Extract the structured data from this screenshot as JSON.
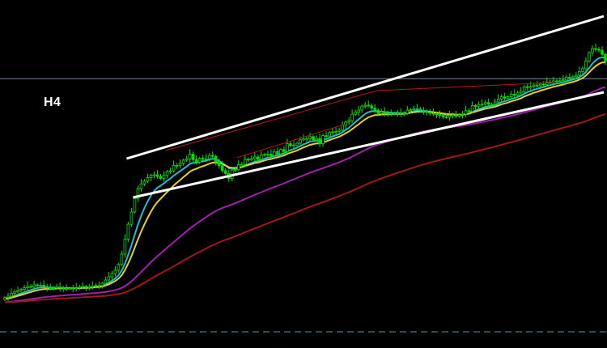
{
  "timeframe_label": "H4",
  "colors": {
    "background": "#000000",
    "candle": "#00e000",
    "ma_fast": "#22b8d8",
    "ma_medium": "#e8d020",
    "ma_slow": "#a020a8",
    "ma_long": "#a01818",
    "trendline": "#ffffff",
    "horizontal_level": "#7a8a98",
    "bottom_level": "#4a9aa8",
    "thin_red_line": "#b01818"
  },
  "chart_data": {
    "type": "candlestick",
    "title": "",
    "xlabel": "",
    "ylabel": "",
    "xlim": [
      0,
      185
    ],
    "ylim": [
      0,
      100
    ],
    "grid": false,
    "closes": [
      11.6,
      12.0,
      12.9,
      13.4,
      13.8,
      14.1,
      14.6,
      15.0,
      14.9,
      15.5,
      15.3,
      15.4,
      15.0,
      14.6,
      14.6,
      14.5,
      14.8,
      14.5,
      14.2,
      14.4,
      14.5,
      14.3,
      14.6,
      14.8,
      15.0,
      14.7,
      14.8,
      15.1,
      15.3,
      15.3,
      16.0,
      17.0,
      18.0,
      19.0,
      20.0,
      21.8,
      25.0,
      29.6,
      34.2,
      38.0,
      42.2,
      45.2,
      46.7,
      47.5,
      48.6,
      49.3,
      49.5,
      49.0,
      48.4,
      49.3,
      50.5,
      50.7,
      52.4,
      52.4,
      53.0,
      54.0,
      54.4,
      55.9,
      54.2,
      53.4,
      54.6,
      54.4,
      54.4,
      55.5,
      55.2,
      53.5,
      52.3,
      50.8,
      49.9,
      48.4,
      51.0,
      51.1,
      52.6,
      52.7,
      54.3,
      54.2,
      54.5,
      55.0,
      54.3,
      55.6,
      55.8,
      55.9,
      55.4,
      56.7,
      56.0,
      57.3,
      56.7,
      59.1,
      58.5,
      58.7,
      59.2,
      60.3,
      60.6,
      60.7,
      61.3,
      60.3,
      60.7,
      59.1,
      61.6,
      61.5,
      62.6,
      62.8,
      62.9,
      63.3,
      64.8,
      65.8,
      66.2,
      68.2,
      68.9,
      69.5,
      70.7,
      71.0,
      70.8,
      70.1,
      69.5,
      68.4,
      68.9,
      68.6,
      68.3,
      68.4,
      68.5,
      68.6,
      68.3,
      68.4,
      69.5,
      69.6,
      69.9,
      69.8,
      69.2,
      69.2,
      68.8,
      68.5,
      68.3,
      68.1,
      67.8,
      67.4,
      67.3,
      67.8,
      68.0,
      67.6,
      68.0,
      68.2,
      69.3,
      69.1,
      70.9,
      70.7,
      71.2,
      71.3,
      71.8,
      71.3,
      71.3,
      72.0,
      72.9,
      73.6,
      73.2,
      73.6,
      74.4,
      74.1,
      74.8,
      75.3,
      76.7,
      76.5,
      76.8,
      77.2,
      77.0,
      77.5,
      77.4,
      78.1,
      78.0,
      78.5,
      78.4,
      78.6,
      78.8,
      79.6,
      79.5,
      79.8,
      80.2,
      81.4,
      82.3,
      84.6,
      87.2,
      88.5,
      88.3,
      88.0,
      86.7,
      84.5
    ],
    "moving_averages": [
      {
        "period": 8,
        "color_key": "ma_fast"
      },
      {
        "period": 13,
        "color_key": "ma_medium"
      },
      {
        "period": 55,
        "color_key": "ma_slow"
      },
      {
        "period": 110,
        "color_key": "ma_long"
      }
    ],
    "trendlines": [
      {
        "color_key": "trendline",
        "width": 3,
        "points": [
          [
            38,
            54.5
          ],
          [
            185,
            98.5
          ]
        ]
      },
      {
        "color_key": "trendline",
        "width": 3,
        "points": [
          [
            40,
            42.5
          ],
          [
            185,
            75.0
          ]
        ]
      },
      {
        "color_key": "thin_red_line",
        "width": 1,
        "points": [
          [
            50,
            57.0
          ],
          [
            115,
            75.5
          ],
          [
            170,
            78.0
          ]
        ]
      },
      {
        "color_key": "thin_red_line",
        "width": 1,
        "points": [
          [
            72,
            54.8
          ],
          [
            105,
            65.0
          ]
        ]
      }
    ],
    "horizontal_levels": [
      {
        "y": 79.2,
        "color_key": "horizontal_level",
        "dashed": false
      },
      {
        "y": 1.0,
        "color_key": "bottom_level",
        "dashed": true
      }
    ]
  }
}
